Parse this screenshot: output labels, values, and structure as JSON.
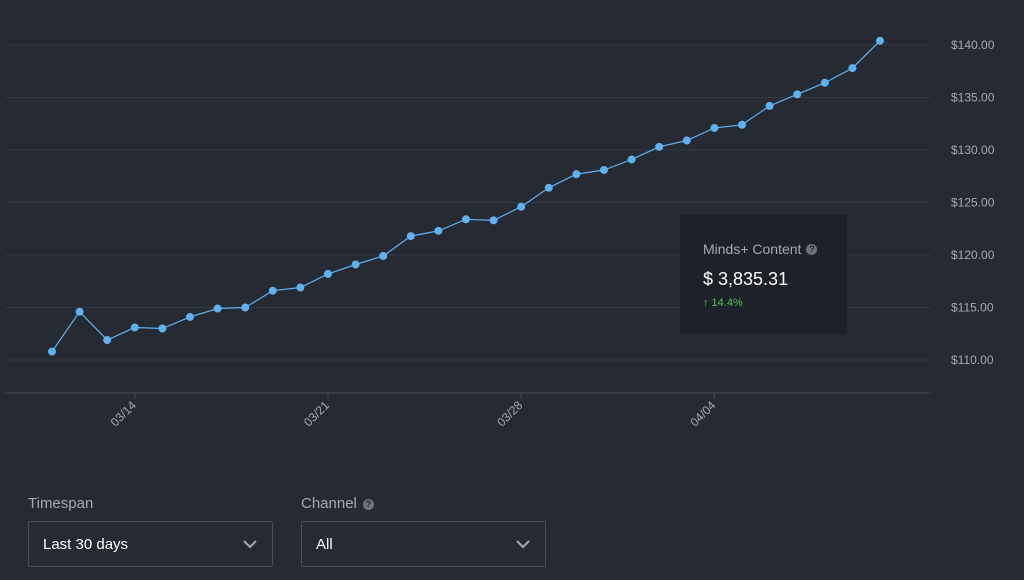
{
  "chart_data": {
    "type": "line",
    "x": [
      "03/11",
      "03/12",
      "03/13",
      "03/14",
      "03/15",
      "03/16",
      "03/17",
      "03/18",
      "03/19",
      "03/20",
      "03/21",
      "03/22",
      "03/23",
      "03/24",
      "03/25",
      "03/26",
      "03/27",
      "03/28",
      "03/29",
      "03/30",
      "03/31",
      "04/01",
      "04/02",
      "04/03",
      "04/04",
      "04/05",
      "04/06",
      "04/07",
      "04/08",
      "04/09",
      "04/10"
    ],
    "x_tick_labels": [
      "03/14",
      "03/21",
      "03/28",
      "04/04"
    ],
    "series": [
      {
        "values": [
          110.8,
          114.6,
          111.9,
          113.1,
          113.0,
          114.1,
          114.9,
          115.0,
          116.6,
          116.9,
          118.2,
          119.1,
          119.9,
          121.8,
          122.3,
          123.4,
          123.3,
          124.6,
          126.4,
          127.7,
          128.1,
          129.1,
          130.3,
          130.9,
          132.1,
          132.4,
          134.2,
          135.3,
          136.4,
          137.8,
          140.4
        ],
        "color": "#5fb1f0"
      }
    ],
    "y_tick_labels": [
      "$110.00",
      "$115.00",
      "$120.00",
      "$125.00",
      "$130.00",
      "$135.00",
      "$140.00"
    ],
    "ylim": [
      107,
      141.5
    ],
    "grid": true,
    "legend": "none"
  },
  "tooltip": {
    "title": "Minds+ Content",
    "value": "$ 3,835.31",
    "change": "↑ 14.4%",
    "change_color": "#56c45b",
    "help_icon": "question-circle-icon"
  },
  "filters": {
    "timespan": {
      "label": "Timespan",
      "value": "Last 30 days",
      "icon": "chevron-down-icon"
    },
    "channel": {
      "label": "Channel",
      "value": "All",
      "help_icon": "question-circle-icon",
      "icon": "chevron-down-icon"
    }
  },
  "colors": {
    "background": "#252a33",
    "grid": "#343943",
    "axis": "#4a4f57",
    "text": "#a4a9b1",
    "line": "#5fb1f0"
  }
}
